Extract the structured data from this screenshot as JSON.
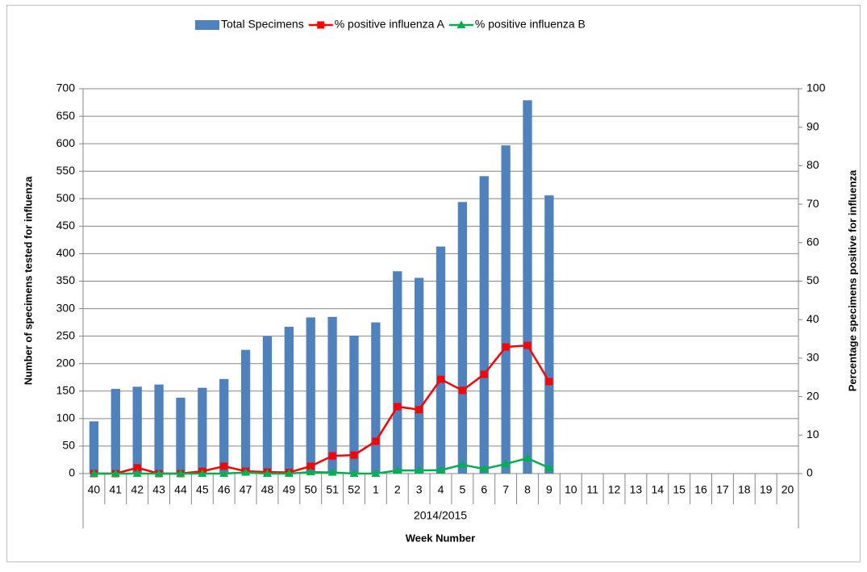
{
  "chart_data": {
    "type": "bar_line",
    "categories": [
      "40",
      "41",
      "42",
      "43",
      "44",
      "45",
      "46",
      "47",
      "48",
      "49",
      "50",
      "51",
      "52",
      "1",
      "2",
      "3",
      "4",
      "5",
      "6",
      "7",
      "8",
      "9",
      "10",
      "11",
      "12",
      "13",
      "14",
      "15",
      "16",
      "17",
      "18",
      "19",
      "20"
    ],
    "x_group_label": "2014/2015",
    "x_label": "Week Number",
    "y_label": "Number of specimens tested for influenza",
    "y2_label": "Percentage specimens positive for influenza",
    "ylim": [
      0,
      700
    ],
    "yticks": [
      0,
      50,
      100,
      150,
      200,
      250,
      300,
      350,
      400,
      450,
      500,
      550,
      600,
      650,
      700
    ],
    "y2lim": [
      0,
      100
    ],
    "y2ticks": [
      0,
      10,
      20,
      30,
      40,
      50,
      60,
      70,
      80,
      90,
      100
    ],
    "grid": true,
    "legend": "top",
    "series": [
      {
        "name": "Total Specimens",
        "type": "bar",
        "color": "#4f81bd",
        "values": [
          95,
          154,
          158,
          162,
          138,
          156,
          172,
          225,
          250,
          267,
          284,
          285,
          251,
          275,
          368,
          356,
          413,
          494,
          541,
          597,
          679,
          506,
          null,
          null,
          null,
          null,
          null,
          null,
          null,
          null,
          null,
          null,
          null
        ]
      },
      {
        "name": "% positive influenza A",
        "type": "line",
        "marker": "square",
        "axis": "y2",
        "color": "#ff0000",
        "values": [
          0,
          0,
          1.5,
          0,
          0,
          0.6,
          1.9,
          0.6,
          0.4,
          0.3,
          1.9,
          4.6,
          4.8,
          8.4,
          17.4,
          16.6,
          24.5,
          21.6,
          25.8,
          32.9,
          33.3,
          23.9,
          null,
          null,
          null,
          null,
          null,
          null,
          null,
          null,
          null,
          null,
          null
        ]
      },
      {
        "name": "% positive influenza B",
        "type": "line",
        "marker": "triangle",
        "axis": "y2",
        "color": "#00b050",
        "values": [
          0,
          0,
          0,
          0,
          0,
          0,
          0,
          0.3,
          0,
          0,
          0.4,
          0.3,
          0,
          0,
          0.8,
          0.8,
          0.9,
          2.3,
          1.2,
          2.5,
          4,
          1.5,
          null,
          null,
          null,
          null,
          null,
          null,
          null,
          null,
          null,
          null,
          null
        ]
      }
    ]
  }
}
